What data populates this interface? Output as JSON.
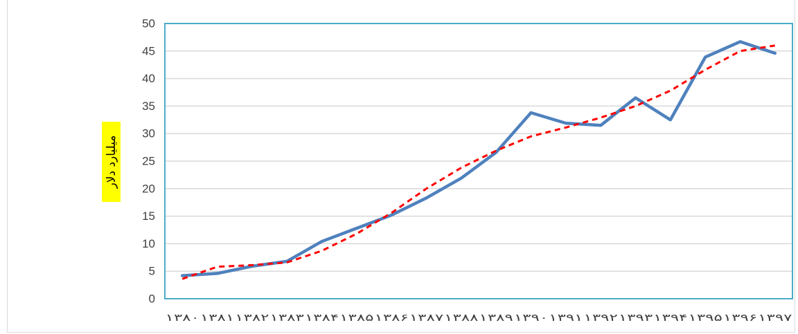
{
  "chart_data": {
    "type": "line",
    "title": "",
    "xlabel": "",
    "ylabel": "میلیارد دلار",
    "categories": [
      "۱۳۸۰",
      "۱۳۸۱",
      "۱۳۸۲",
      "۱۳۸۳",
      "۱۳۸۴",
      "۱۳۸۵",
      "۱۳۸۶",
      "۱۳۸۷",
      "۱۳۸۸",
      "۱۳۸۹",
      "۱۳۹۰",
      "۱۳۹۱",
      "۱۳۹۲",
      "۱۳۹۳",
      "۱۳۹۴",
      "۱۳۹۵",
      "۱۳۹۶",
      "۱۳۹۷"
    ],
    "yticks": [
      "0",
      "5",
      "10",
      "15",
      "20",
      "25",
      "30",
      "35",
      "40",
      "45",
      "50"
    ],
    "ylim": [
      0,
      50
    ],
    "grid": true,
    "series": [
      {
        "kind": "actual",
        "color": "#4f81bd",
        "style": "solid",
        "values": [
          4.2,
          4.6,
          5.9,
          6.8,
          10.4,
          12.8,
          15.2,
          18.3,
          21.9,
          26.6,
          33.8,
          31.9,
          31.5,
          36.5,
          32.5,
          43.9,
          46.7,
          44.6
        ]
      },
      {
        "kind": "trend",
        "color": "#ff0000",
        "style": "dashed",
        "values": [
          3.6,
          5.8,
          6.1,
          6.6,
          8.7,
          11.8,
          15.6,
          20.0,
          23.8,
          26.9,
          29.5,
          31.1,
          32.9,
          35.0,
          37.8,
          41.6,
          45.0,
          46.0
        ]
      }
    ]
  }
}
